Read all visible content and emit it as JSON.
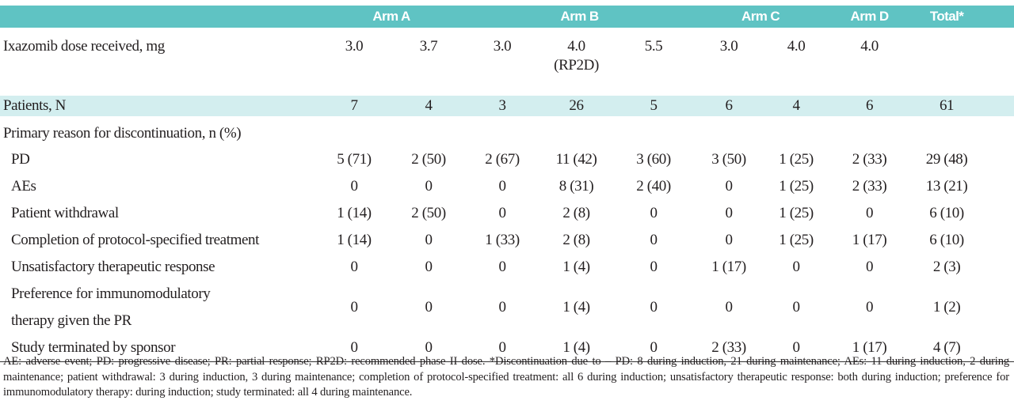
{
  "table": {
    "header": [
      {
        "label": "Arm A",
        "span": 2
      },
      {
        "label": "Arm B",
        "span": 3
      },
      {
        "label": "Arm C",
        "span": 2
      },
      {
        "label": "Arm D",
        "span": 1
      },
      {
        "label": "Total*",
        "span": 1
      }
    ],
    "rows": [
      {
        "label": "Ixazomib dose received, mg",
        "cells": [
          "3.0",
          "3.7",
          "3.0",
          "4.0\n(RP2D)",
          "5.5",
          "3.0",
          "4.0",
          "4.0"
        ]
      },
      {
        "label": "Patients, N",
        "cells": [
          "7",
          "4",
          "3",
          "26",
          "5",
          "6",
          "4",
          "6",
          "61"
        ]
      }
    ],
    "section": {
      "title": "Primary reason for discontinuation, n (%)",
      "rows": [
        {
          "label": "PD",
          "cells": [
            "5 (71)",
            "2 (50)",
            "2 (67)",
            "11 (42)",
            "3 (60)",
            "3 (50)",
            "1 (25)",
            "2 (33)",
            "29 (48)"
          ]
        },
        {
          "label": "AEs",
          "cells": [
            "0",
            "0",
            "0",
            "8 (31)",
            "2 (40)",
            "0",
            "1 (25)",
            "2 (33)",
            "13 (21)"
          ]
        },
        {
          "label": "Patient withdrawal",
          "cells": [
            "1 (14)",
            "2 (50)",
            "0",
            "2 (8)",
            "0",
            "0",
            "1 (25)",
            "0",
            "6 (10)"
          ]
        },
        {
          "label": "Completion of protocol-specified treatment",
          "cells": [
            "1 (14)",
            "0",
            "1 (33)",
            "2 (8)",
            "0",
            "0",
            "1 (25)",
            "1 (17)",
            "6 (10)"
          ]
        },
        {
          "label": "Unsatisfactory therapeutic response",
          "cells": [
            "0",
            "0",
            "0",
            "1 (4)",
            "0",
            "1 (17)",
            "0",
            "0",
            "2 (3)"
          ]
        },
        {
          "label": "Preference for immunomodulatory\ntherapy given the PR",
          "cells": [
            "0",
            "0",
            "0",
            "1 (4)",
            "0",
            "0",
            "0",
            "0",
            "1 (2)"
          ]
        },
        {
          "label": "Study terminated by sponsor",
          "cells": [
            "0",
            "0",
            "0",
            "1 (4)",
            "0",
            "2 (33)",
            "0",
            "1 (17)",
            "4 (7)"
          ]
        }
      ]
    },
    "footnote": "AE: adverse event; PD: progressive disease; PR: partial response; RP2D: recommended phase II dose. *Discontinuation due to – PD: 8 during induction, 21 during maintenance; AEs: 11 during induction, 2 during maintenance; patient withdrawal: 3 during induction, 3 during maintenance; completion of protocol-specified treatment: all 6 during induction; unsatisfactory therapeutic response: both during induction; preference for immunomodulatory therapy: during induction; study terminated: all 4 during maintenance."
  }
}
